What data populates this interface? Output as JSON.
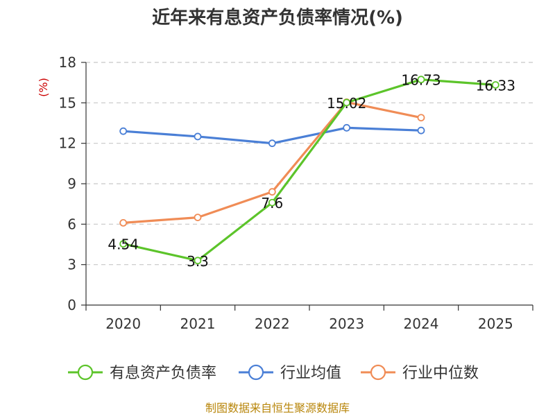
{
  "chart_data": {
    "type": "line",
    "title": "近年来有息资产负债率情况(%)",
    "ylabel": "(%)",
    "xlabel": "",
    "categories": [
      "2020",
      "2021",
      "2022",
      "2023",
      "2024",
      "2025"
    ],
    "ylim": [
      0,
      18
    ],
    "yticks": [
      0,
      3,
      6,
      9,
      12,
      15,
      18
    ],
    "grid": true,
    "legend_position": "bottom",
    "series": [
      {
        "name": "有息资产负债率",
        "color": "#5cc42a",
        "values": [
          4.54,
          3.3,
          7.6,
          15.02,
          16.73,
          16.33
        ],
        "labels": [
          "4.54",
          "3.3",
          "7.6",
          "15.02",
          "16.73",
          "16.33"
        ]
      },
      {
        "name": "行业均值",
        "color": "#4a7fd6",
        "values": [
          12.9,
          12.5,
          12.0,
          13.15,
          12.95,
          null
        ]
      },
      {
        "name": "行业中位数",
        "color": "#f08c56",
        "values": [
          6.1,
          6.5,
          8.4,
          15.05,
          13.9,
          null
        ]
      }
    ]
  },
  "footer": {
    "source": "制图数据来自恒生聚源数据库"
  }
}
